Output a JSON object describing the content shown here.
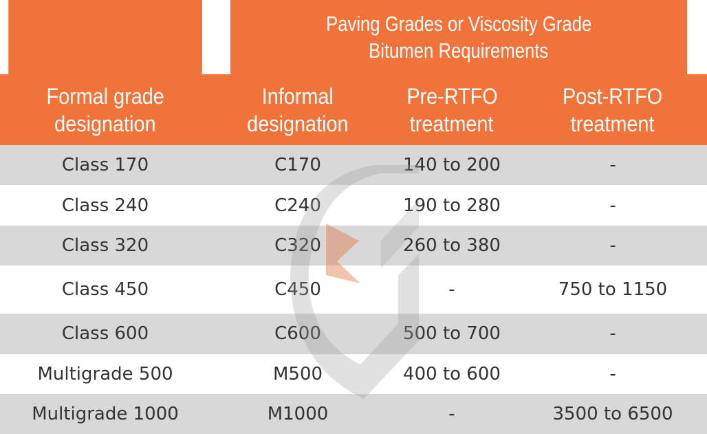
{
  "header": {
    "group_title_line1": "Paving Grades or Viscosity Grade",
    "group_title_line2": "Bitumen Requirements",
    "columns": [
      {
        "line1": "Formal grade",
        "line2": "designation"
      },
      {
        "line1": "Informal",
        "line2": "designation"
      },
      {
        "line1": "Pre-RTFO",
        "line2": "treatment"
      },
      {
        "line1": "Post-RTFO",
        "line2": "treatment"
      }
    ]
  },
  "rows": [
    {
      "formal": "Class 170",
      "informal": "C170",
      "pre": "140 to 200",
      "post": "-"
    },
    {
      "formal": "Class 240",
      "informal": "C240",
      "pre": "190 to 280",
      "post": "-"
    },
    {
      "formal": "Class 320",
      "informal": "C320",
      "pre": "260 to 380",
      "post": "-"
    },
    {
      "formal": "Class 450",
      "informal": "C450",
      "pre": "-",
      "post": "750 to 1150"
    },
    {
      "formal": "Class 600",
      "informal": "C600",
      "pre": "500 to 700",
      "post": "-"
    },
    {
      "formal": "Multigrade 500",
      "informal": "M500",
      "pre": "400 to 600",
      "post": "-"
    },
    {
      "formal": "Multigrade 1000",
      "informal": "M1000",
      "pre": "-",
      "post": "3500 to 6500"
    }
  ],
  "colors": {
    "header_bg": "#f27339",
    "shaded_row": "#cdcdcd",
    "watermark_orange": "#e0703a",
    "watermark_gray": "#9a9a9a"
  },
  "icons": {
    "watermark": "brand-logo-watermark-icon"
  }
}
